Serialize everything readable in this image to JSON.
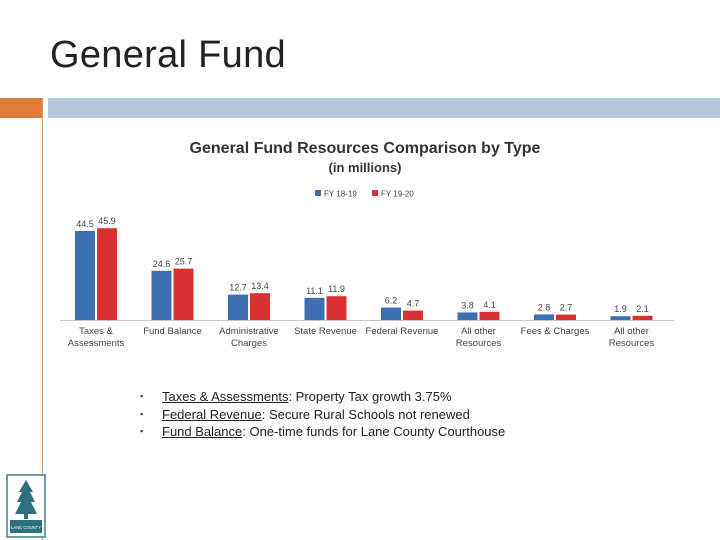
{
  "slide": {
    "title": "General Fund",
    "colors": {
      "accent_orange": "#e07b3c",
      "accent_blue": "#b7c6d8"
    }
  },
  "chart_data": {
    "type": "bar",
    "title": "General Fund Resources Comparison by Type",
    "subtitle": "(in millions)",
    "categories": [
      [
        "Taxes &",
        "Assessments"
      ],
      [
        "Fund Balance"
      ],
      [
        "Administrative",
        "Charges"
      ],
      [
        "State Revenue"
      ],
      [
        "Federal Revenue"
      ],
      [
        "All other",
        "Resources"
      ],
      [
        "Fees & Charges"
      ],
      [
        "All other",
        "Resources"
      ]
    ],
    "series": [
      {
        "name": "FY 18-19",
        "color": "#3f6fb3",
        "values": [
          44.5,
          24.6,
          12.7,
          11.1,
          6.2,
          3.8,
          2.8,
          1.9
        ],
        "labels": [
          "44.5",
          "24.6",
          "12.7",
          "11.1",
          "6.2",
          "3.8",
          "2.8",
          "1.9"
        ]
      },
      {
        "name": "FY 19-20",
        "color": "#d9312f",
        "values": [
          45.9,
          25.7,
          13.4,
          11.9,
          4.7,
          4.1,
          2.7,
          2.1
        ],
        "labels": [
          "45.9",
          "25.7",
          "13.4",
          "11.9",
          "4.7",
          "4.1",
          "2.7",
          "2.1"
        ]
      }
    ],
    "xlabel": "",
    "ylabel": "",
    "ylim": [
      0,
      50
    ],
    "legend_position": "top-center",
    "grid": false
  },
  "bullets": [
    {
      "underlined": "Taxes & Assessments",
      "rest": ": Property Tax growth 3.75%"
    },
    {
      "underlined": "Federal Revenue",
      "rest": ": Secure Rural Schools not renewed"
    },
    {
      "underlined": "Fund Balance",
      "rest": ": One-time funds for Lane County Courthouse"
    }
  ],
  "logo": {
    "text": "LANE COUNTY",
    "icon": "tree-icon"
  }
}
